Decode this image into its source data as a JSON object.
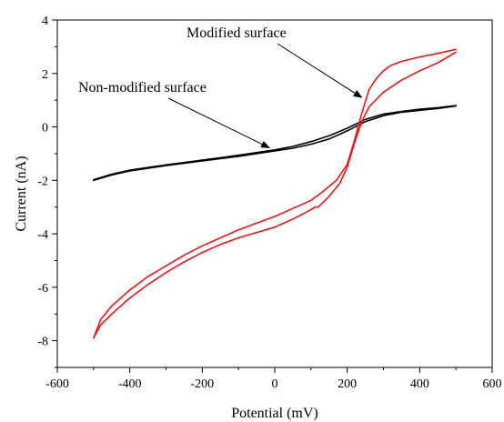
{
  "chart_data": {
    "type": "line",
    "title": "",
    "xlabel": "Potential (mV)",
    "ylabel": "Current (nA)",
    "xlim": [
      -600,
      600
    ],
    "ylim": [
      -9,
      4
    ],
    "x_ticks": [
      -600,
      -400,
      -200,
      0,
      200,
      400,
      600
    ],
    "y_ticks": [
      -8,
      -6,
      -4,
      -2,
      0,
      2,
      4
    ],
    "x_tick_labels": [
      "-600",
      "-400",
      "-200",
      "0",
      "200",
      "400",
      "600"
    ],
    "y_tick_labels": [
      "-8",
      "-6",
      "-4",
      "-2",
      "0",
      "2",
      "4"
    ],
    "grid": false,
    "legend": "none",
    "series": [
      {
        "color": "#000000",
        "forward": [
          [
            -500,
            -2.0
          ],
          [
            -450,
            -1.8
          ],
          [
            -400,
            -1.65
          ],
          [
            -300,
            -1.45
          ],
          [
            -200,
            -1.27
          ],
          [
            -100,
            -1.1
          ],
          [
            0,
            -0.9
          ],
          [
            50,
            -0.8
          ],
          [
            100,
            -0.65
          ],
          [
            150,
            -0.45
          ],
          [
            200,
            -0.15
          ],
          [
            250,
            0.2
          ],
          [
            300,
            0.42
          ],
          [
            350,
            0.55
          ],
          [
            400,
            0.62
          ],
          [
            450,
            0.69
          ],
          [
            500,
            0.78
          ]
        ],
        "reverse": [
          [
            500,
            0.8
          ],
          [
            450,
            0.72
          ],
          [
            400,
            0.66
          ],
          [
            350,
            0.58
          ],
          [
            300,
            0.48
          ],
          [
            250,
            0.28
          ],
          [
            200,
            -0.05
          ],
          [
            150,
            -0.33
          ],
          [
            100,
            -0.55
          ],
          [
            50,
            -0.73
          ],
          [
            0,
            -0.86
          ],
          [
            -100,
            -1.06
          ],
          [
            -200,
            -1.24
          ],
          [
            -300,
            -1.42
          ],
          [
            -400,
            -1.62
          ],
          [
            -450,
            -1.77
          ],
          [
            -500,
            -1.98
          ]
        ]
      },
      {
        "color": "#e8161b",
        "forward": [
          [
            -500,
            -7.9
          ],
          [
            -480,
            -7.4
          ],
          [
            -450,
            -7.0
          ],
          [
            -400,
            -6.4
          ],
          [
            -350,
            -5.9
          ],
          [
            -300,
            -5.45
          ],
          [
            -250,
            -5.05
          ],
          [
            -200,
            -4.7
          ],
          [
            -150,
            -4.4
          ],
          [
            -100,
            -4.15
          ],
          [
            -50,
            -3.95
          ],
          [
            0,
            -3.75
          ],
          [
            50,
            -3.45
          ],
          [
            100,
            -3.1
          ],
          [
            110,
            -3.0
          ],
          [
            120,
            -3.0
          ],
          [
            150,
            -2.6
          ],
          [
            180,
            -2.1
          ],
          [
            200,
            -1.5
          ],
          [
            220,
            -0.6
          ],
          [
            240,
            0.2
          ],
          [
            260,
            0.75
          ],
          [
            300,
            1.3
          ],
          [
            350,
            1.75
          ],
          [
            400,
            2.1
          ],
          [
            450,
            2.4
          ],
          [
            500,
            2.8
          ]
        ],
        "reverse": [
          [
            500,
            2.9
          ],
          [
            450,
            2.75
          ],
          [
            400,
            2.62
          ],
          [
            350,
            2.45
          ],
          [
            320,
            2.3
          ],
          [
            300,
            2.1
          ],
          [
            280,
            1.8
          ],
          [
            260,
            1.4
          ],
          [
            240,
            0.5
          ],
          [
            220,
            -0.5
          ],
          [
            200,
            -1.4
          ],
          [
            170,
            -2.0
          ],
          [
            130,
            -2.45
          ],
          [
            100,
            -2.75
          ],
          [
            50,
            -3.05
          ],
          [
            0,
            -3.35
          ],
          [
            -50,
            -3.6
          ],
          [
            -100,
            -3.85
          ],
          [
            -150,
            -4.15
          ],
          [
            -200,
            -4.45
          ],
          [
            -250,
            -4.8
          ],
          [
            -300,
            -5.2
          ],
          [
            -350,
            -5.6
          ],
          [
            -400,
            -6.1
          ],
          [
            -450,
            -6.7
          ],
          [
            -480,
            -7.2
          ],
          [
            -500,
            -7.9
          ]
        ]
      }
    ],
    "annotations": [
      {
        "text": "Modified surface",
        "target": [
          240,
          1.1
        ]
      },
      {
        "text": "Non-modified surface",
        "target": [
          -15,
          -0.78
        ]
      }
    ]
  }
}
